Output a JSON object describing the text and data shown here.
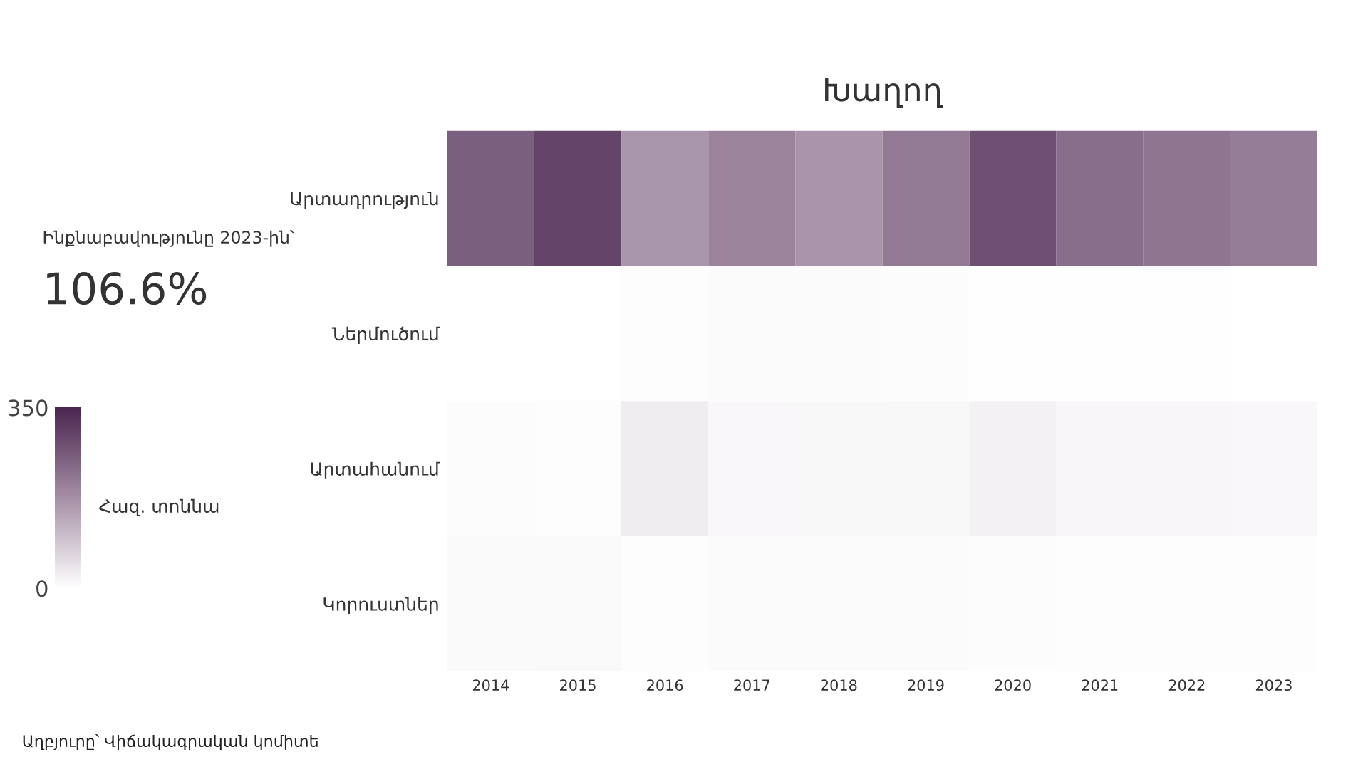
{
  "chart_data": {
    "type": "heatmap",
    "title": "Խաղող",
    "categories": [
      "2014",
      "2015",
      "2016",
      "2017",
      "2018",
      "2019",
      "2020",
      "2021",
      "2022",
      "2023"
    ],
    "y_categories": [
      "Արտադրություն",
      "Ներմուծում",
      "Արտահանում",
      "Կորուստներ"
    ],
    "cells": [
      [
        255,
        300,
        165,
        195,
        168,
        210,
        280,
        230,
        218,
        205
      ],
      [
        1,
        1,
        3,
        7,
        6,
        5,
        2,
        2,
        2,
        1
      ],
      [
        5,
        3,
        30,
        13,
        11,
        12,
        22,
        15,
        14,
        13
      ],
      [
        9,
        10,
        4,
        6,
        6,
        6,
        5,
        3,
        3,
        3
      ]
    ],
    "clim": [
      0,
      350
    ],
    "cticks": [
      0,
      350
    ],
    "clabel": "Հազ. տոննա",
    "annotations": [
      "Ինքնաբավությունը 2023-ին՝",
      "106.6%",
      "Աղբյուրը՝ Վիճակագրական կոմիտե"
    ]
  }
}
